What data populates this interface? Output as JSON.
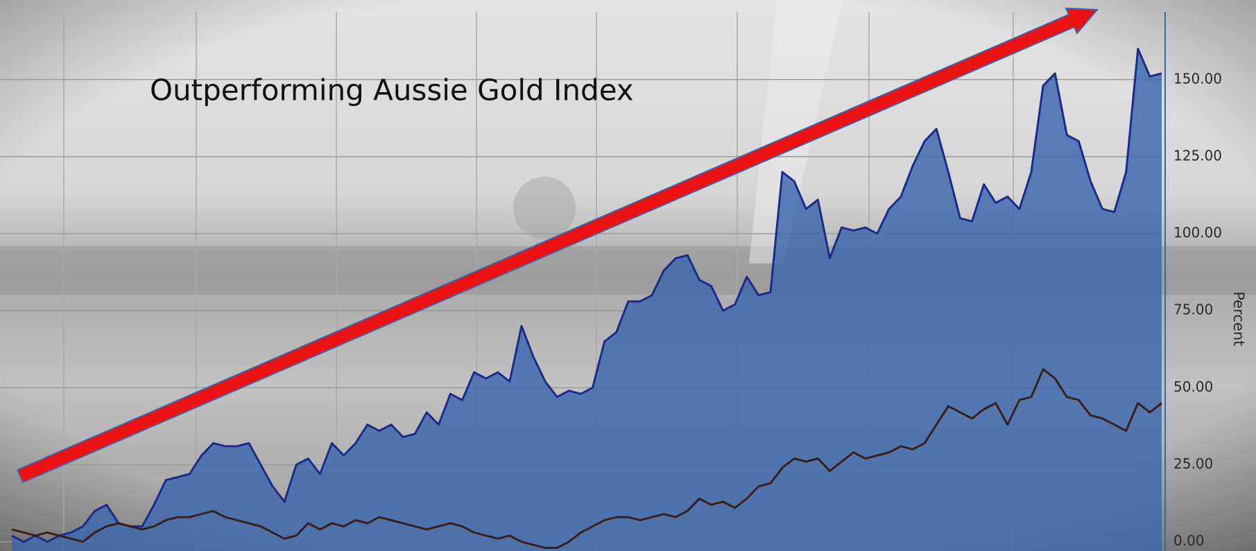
{
  "chart_data": {
    "type": "area",
    "title": "Outperforming Aussie Gold Index",
    "y_label": "Percent",
    "categories": [
      null,
      null,
      null,
      null,
      null,
      null,
      null,
      null,
      null,
      null,
      null,
      null,
      null,
      null,
      null,
      null,
      null,
      null,
      null,
      null,
      null,
      null,
      null,
      null,
      null,
      null,
      null,
      null,
      null,
      null,
      null,
      null,
      null,
      null,
      null,
      null,
      null,
      null,
      null,
      null,
      null,
      null,
      null,
      null,
      null,
      null,
      null,
      null,
      null,
      null,
      null,
      null,
      null,
      null,
      null,
      null,
      null,
      null,
      null,
      null,
      null,
      null,
      null,
      null,
      null,
      null,
      null,
      null,
      null,
      null,
      null,
      null,
      null,
      null,
      null,
      null,
      null,
      null,
      null,
      null,
      null,
      null,
      null,
      null,
      null,
      null,
      null,
      null,
      null,
      null,
      null,
      null,
      null,
      null,
      null,
      null,
      null,
      null
    ],
    "series": [
      {
        "type": "area",
        "color": "#3b66ad",
        "line_color": "#1c2a8c",
        "values": [
          2,
          0,
          2,
          0,
          2,
          3,
          5,
          10,
          12,
          6,
          5,
          5,
          12,
          20,
          21,
          22,
          28,
          32,
          31,
          31,
          32,
          25,
          18,
          13,
          25,
          27,
          22,
          32,
          28,
          32,
          38,
          36,
          38,
          34,
          35,
          42,
          38,
          48,
          46,
          55,
          53,
          55,
          52,
          70,
          60,
          52,
          47,
          49,
          48,
          50,
          65,
          68,
          78,
          78,
          80,
          88,
          92,
          93,
          85,
          83,
          75,
          77,
          86,
          80,
          81,
          120,
          117,
          108,
          111,
          92,
          102,
          101,
          102,
          100,
          108,
          112,
          122,
          130,
          134,
          120,
          105,
          104,
          116,
          110,
          112,
          108,
          120,
          148,
          152,
          132,
          130,
          117,
          108,
          107,
          120,
          160,
          151,
          152
        ]
      },
      {
        "type": "line",
        "color": "#3a1e1a",
        "values": [
          4,
          3,
          2,
          3,
          2,
          1,
          0,
          3,
          5,
          6,
          5,
          4,
          5,
          7,
          8,
          8,
          9,
          10,
          8,
          7,
          6,
          5,
          3,
          1,
          2,
          6,
          4,
          6,
          5,
          7,
          6,
          8,
          7,
          6,
          5,
          4,
          5,
          6,
          5,
          3,
          2,
          1,
          2,
          0,
          -1,
          -2,
          -2,
          0,
          3,
          5,
          7,
          8,
          8,
          7,
          8,
          9,
          8,
          10,
          14,
          12,
          13,
          11,
          14,
          18,
          19,
          24,
          27,
          26,
          27,
          23,
          26,
          29,
          27,
          28,
          29,
          31,
          30,
          32,
          38,
          44,
          42,
          40,
          43,
          45,
          38,
          46,
          47,
          56,
          53,
          47,
          46,
          41,
          40,
          38,
          36,
          45,
          42,
          45
        ]
      }
    ],
    "ylim": [
      -3,
      172
    ],
    "yticks": [
      {
        "value": 0,
        "label": "0.00"
      },
      {
        "value": 25,
        "label": "25.00"
      },
      {
        "value": 50,
        "label": "50.00"
      },
      {
        "value": 75,
        "label": "75.00"
      },
      {
        "value": 100,
        "label": "100.00"
      },
      {
        "value": 125,
        "label": "125.00"
      },
      {
        "value": 150,
        "label": "150.00"
      }
    ],
    "grid": true,
    "y_axis_side": "right"
  }
}
